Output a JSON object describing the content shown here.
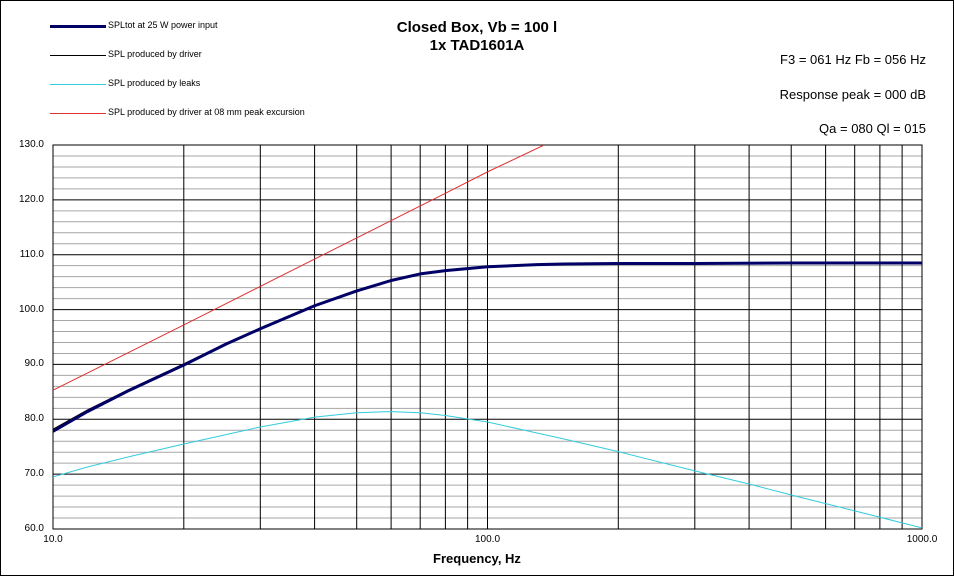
{
  "chart_data": {
    "type": "line",
    "title": "Closed Box, Vb = 100 l",
    "subtitle": "1x TAD1601A",
    "xlabel": "Frequency, Hz",
    "ylabel": "",
    "x_scale": "log",
    "xlim": [
      10,
      1000
    ],
    "ylim": [
      60,
      130
    ],
    "grid": true,
    "legend_position": "top-left",
    "xticks": [
      "10.0",
      "100.0",
      "1000.0"
    ],
    "yticks": [
      "60.0",
      "70.0",
      "80.0",
      "90.0",
      "100.0",
      "110.0",
      "120.0",
      "130.0"
    ],
    "annotations": [
      "F3 = 061 Hz  Fb = 056 Hz",
      "Response  peak = 000 dB",
      "Qa = 080  Ql = 015"
    ],
    "series": [
      {
        "name": "SPLtot at 25 W power input",
        "color": "#000066",
        "x": [
          10,
          12,
          15,
          20,
          25,
          30,
          40,
          50,
          60,
          70,
          80,
          100,
          130,
          150,
          200,
          300,
          500,
          700,
          1000
        ],
        "values": [
          77.8,
          81.4,
          85.3,
          89.9,
          93.7,
          96.5,
          100.7,
          103.4,
          105.3,
          106.5,
          107.1,
          107.8,
          108.2,
          108.3,
          108.4,
          108.4,
          108.5,
          108.5,
          108.5
        ]
      },
      {
        "name": "SPL produced by driver",
        "color": "#000000",
        "x": [
          10,
          12,
          15,
          20,
          25,
          30,
          40,
          50,
          60,
          70,
          80,
          100,
          130,
          150,
          200,
          300,
          500,
          700,
          1000
        ],
        "values": [
          78.2,
          81.7,
          85.5,
          90.1,
          93.8,
          96.6,
          100.8,
          103.5,
          105.4,
          106.5,
          107.1,
          107.8,
          108.2,
          108.3,
          108.4,
          108.4,
          108.5,
          108.5,
          108.5
        ]
      },
      {
        "name": "SPL produced by leaks",
        "color": "#33CCDD",
        "x": [
          10,
          12,
          15,
          20,
          25,
          30,
          40,
          50,
          60,
          70,
          80,
          100,
          130,
          150,
          200,
          300,
          400,
          500,
          700,
          1000
        ],
        "values": [
          69.5,
          71.3,
          73.2,
          75.5,
          77.2,
          78.6,
          80.4,
          81.2,
          81.4,
          81.2,
          80.7,
          79.5,
          77.5,
          76.4,
          74.1,
          70.6,
          68.2,
          66.2,
          63.3,
          60.2
        ]
      },
      {
        "name": "SPL produced by driver at 08 mm peak excursion",
        "color": "#E03030",
        "x": [
          10,
          20,
          40,
          80,
          100,
          135
        ],
        "values": [
          85.3,
          97.2,
          109.2,
          121.2,
          125.1,
          130
        ]
      }
    ]
  }
}
